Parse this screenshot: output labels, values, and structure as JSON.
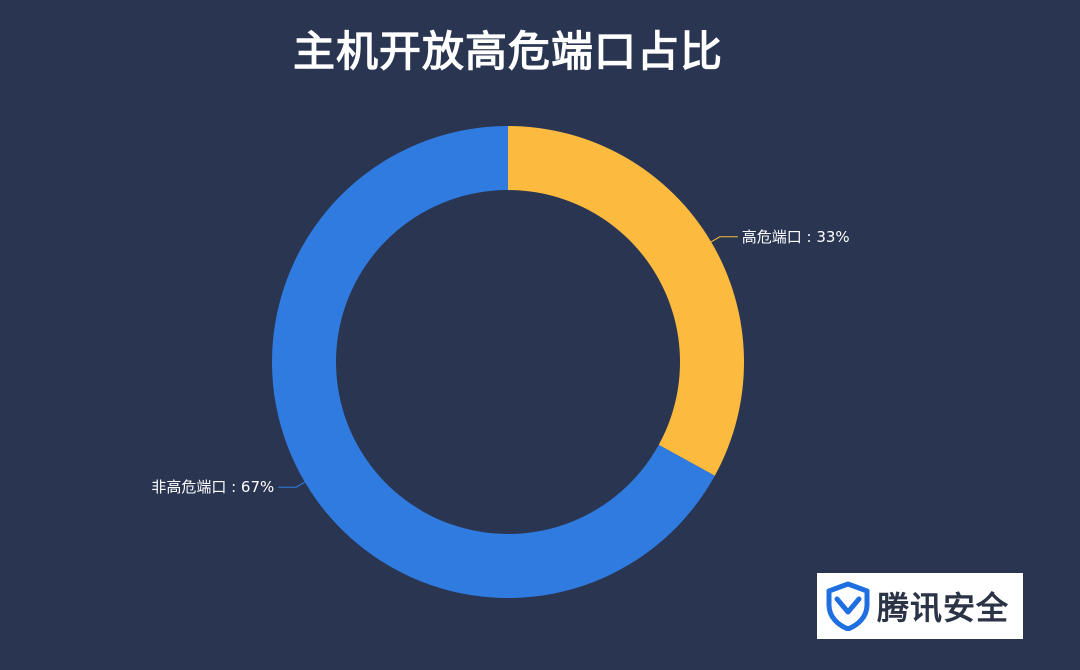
{
  "chart_data": {
    "type": "pie",
    "title": "主机开放高危端口占比",
    "labels": [
      "高危端口",
      "非高危端口"
    ],
    "values": [
      33,
      67
    ],
    "unit": "%",
    "colors": [
      "#fcba3f",
      "#307be0"
    ]
  },
  "brand": {
    "name": "腾讯安全"
  },
  "colors": {
    "background": "#2a3651",
    "label_text": "#ffffff"
  }
}
